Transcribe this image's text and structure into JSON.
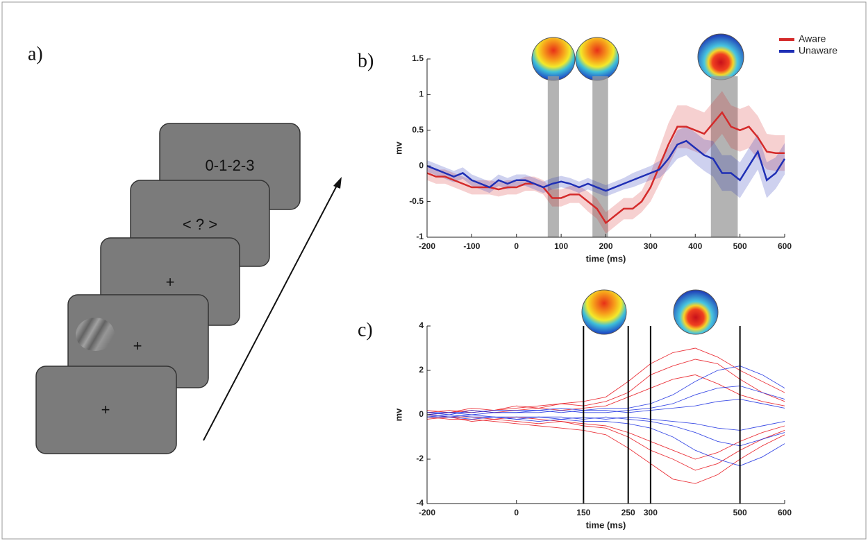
{
  "panels": [
    "a)",
    "b)",
    "c)"
  ],
  "diagram": {
    "screens": [
      "0-1-2-3",
      "< ? >",
      "+",
      "+",
      "+"
    ]
  },
  "chart_data": [
    {
      "type": "line",
      "xlabel": "time (ms)",
      "ylabel": "mv",
      "x": [
        -200,
        -180,
        -160,
        -140,
        -120,
        -100,
        -80,
        -60,
        -40,
        -20,
        0,
        20,
        40,
        60,
        80,
        100,
        120,
        140,
        160,
        180,
        200,
        220,
        240,
        260,
        280,
        300,
        320,
        340,
        360,
        380,
        400,
        420,
        440,
        460,
        480,
        500,
        520,
        540,
        560,
        580,
        600
      ],
      "xlim": [
        -200,
        600
      ],
      "xticks": [
        -200,
        -100,
        0,
        100,
        200,
        300,
        400,
        500,
        600
      ],
      "ylim": [
        -1,
        1.5
      ],
      "yticks": [
        -1,
        -0.5,
        0,
        0.5,
        1,
        1.5
      ],
      "shaded_regions": [
        [
          70,
          95
        ],
        [
          170,
          205
        ],
        [
          435,
          495
        ]
      ],
      "legend": "top-right",
      "series": [
        {
          "name": "Aware",
          "color": "#d42a2a",
          "values": [
            -0.1,
            -0.15,
            -0.15,
            -0.2,
            -0.25,
            -0.3,
            -0.3,
            -0.3,
            -0.33,
            -0.3,
            -0.3,
            -0.25,
            -0.25,
            -0.3,
            -0.45,
            -0.45,
            -0.4,
            -0.4,
            -0.5,
            -0.6,
            -0.8,
            -0.7,
            -0.6,
            -0.6,
            -0.5,
            -0.3,
            0.0,
            0.3,
            0.55,
            0.55,
            0.5,
            0.45,
            0.6,
            0.75,
            0.55,
            0.5,
            0.55,
            0.4,
            0.2,
            0.18,
            0.18
          ],
          "errors": [
            0.1,
            0.1,
            0.1,
            0.1,
            0.1,
            0.1,
            0.1,
            0.1,
            0.1,
            0.1,
            0.1,
            0.1,
            0.1,
            0.1,
            0.12,
            0.12,
            0.12,
            0.12,
            0.14,
            0.14,
            0.15,
            0.15,
            0.15,
            0.15,
            0.15,
            0.2,
            0.25,
            0.3,
            0.3,
            0.3,
            0.3,
            0.3,
            0.3,
            0.3,
            0.3,
            0.3,
            0.3,
            0.3,
            0.25,
            0.25,
            0.25
          ]
        },
        {
          "name": "Unaware",
          "color": "#1f2fb5",
          "values": [
            0.0,
            -0.05,
            -0.1,
            -0.15,
            -0.1,
            -0.2,
            -0.25,
            -0.3,
            -0.2,
            -0.25,
            -0.2,
            -0.2,
            -0.25,
            -0.3,
            -0.25,
            -0.22,
            -0.25,
            -0.3,
            -0.25,
            -0.3,
            -0.35,
            -0.3,
            -0.25,
            -0.2,
            -0.15,
            -0.1,
            -0.05,
            0.1,
            0.3,
            0.35,
            0.25,
            0.15,
            0.1,
            -0.1,
            -0.1,
            -0.2,
            0.0,
            0.2,
            -0.2,
            -0.1,
            0.1
          ],
          "errors": [
            0.08,
            0.08,
            0.08,
            0.08,
            0.08,
            0.08,
            0.08,
            0.08,
            0.08,
            0.08,
            0.08,
            0.08,
            0.08,
            0.08,
            0.08,
            0.08,
            0.08,
            0.08,
            0.08,
            0.08,
            0.08,
            0.08,
            0.08,
            0.1,
            0.1,
            0.1,
            0.12,
            0.15,
            0.2,
            0.2,
            0.22,
            0.22,
            0.25,
            0.25,
            0.25,
            0.25,
            0.25,
            0.25,
            0.25,
            0.22,
            0.22
          ]
        }
      ]
    },
    {
      "type": "line",
      "xlabel": "time (ms)",
      "ylabel": "mv",
      "x": [
        -200,
        -150,
        -100,
        -50,
        0,
        50,
        100,
        150,
        200,
        250,
        300,
        350,
        400,
        450,
        500,
        550,
        600
      ],
      "xlim": [
        -200,
        600
      ],
      "xticks": [
        -200,
        0,
        150,
        250,
        300,
        500,
        600
      ],
      "ylim": [
        -4,
        4
      ],
      "yticks": [
        -4,
        -2,
        0,
        2,
        4
      ],
      "vlines": [
        150,
        250,
        300,
        500
      ],
      "series": [
        {
          "color": "#e8131b",
          "values": [
            0.1,
            0.2,
            0.1,
            0.2,
            0.3,
            0.4,
            0.5,
            0.6,
            0.8,
            1.5,
            2.3,
            2.8,
            3.0,
            2.6,
            2.0,
            1.5,
            1.0
          ]
        },
        {
          "color": "#e8131b",
          "values": [
            -0.1,
            -0.2,
            -0.2,
            -0.3,
            -0.4,
            -0.5,
            -0.6,
            -0.7,
            -0.9,
            -1.5,
            -2.2,
            -2.9,
            -3.1,
            -2.7,
            -2.0,
            -1.4,
            -0.9
          ]
        },
        {
          "color": "#e8131b",
          "values": [
            0.0,
            0.1,
            0.2,
            0.1,
            0.2,
            0.3,
            0.2,
            0.3,
            0.4,
            0.8,
            1.2,
            1.6,
            1.8,
            1.4,
            0.9,
            0.6,
            0.4
          ]
        },
        {
          "color": "#e8131b",
          "values": [
            0.0,
            -0.1,
            -0.1,
            -0.2,
            -0.1,
            -0.2,
            -0.3,
            -0.4,
            -0.5,
            -0.8,
            -1.2,
            -1.6,
            -2.0,
            -1.7,
            -1.2,
            -0.8,
            -0.5
          ]
        },
        {
          "color": "#e8131b",
          "values": [
            0.2,
            0.1,
            0.3,
            0.2,
            0.4,
            0.3,
            0.5,
            0.4,
            0.6,
            1.0,
            1.8,
            2.2,
            2.5,
            2.3,
            1.6,
            1.0,
            0.6
          ]
        },
        {
          "color": "#e8131b",
          "values": [
            -0.2,
            -0.1,
            -0.3,
            -0.2,
            -0.3,
            -0.4,
            -0.3,
            -0.5,
            -0.6,
            -1.0,
            -1.6,
            -2.0,
            -2.5,
            -2.2,
            -1.6,
            -1.1,
            -0.7
          ]
        },
        {
          "color": "#1a2ee0",
          "values": [
            0.1,
            0.1,
            0.1,
            0.2,
            0.2,
            0.2,
            0.3,
            0.2,
            0.3,
            0.3,
            0.5,
            0.9,
            1.5,
            2.0,
            2.2,
            1.8,
            1.2
          ]
        },
        {
          "color": "#1a2ee0",
          "values": [
            -0.1,
            -0.1,
            -0.2,
            -0.1,
            -0.2,
            -0.3,
            -0.2,
            -0.3,
            -0.3,
            -0.4,
            -0.6,
            -1.0,
            -1.6,
            -2.0,
            -2.3,
            -1.9,
            -1.3
          ]
        },
        {
          "color": "#1a2ee0",
          "values": [
            0.0,
            0.1,
            0.0,
            0.1,
            0.1,
            0.1,
            0.2,
            0.1,
            0.1,
            0.2,
            0.3,
            0.5,
            0.9,
            1.2,
            1.3,
            1.0,
            0.7
          ]
        },
        {
          "color": "#1a2ee0",
          "values": [
            0.0,
            -0.1,
            0.0,
            -0.1,
            -0.1,
            -0.1,
            -0.1,
            -0.2,
            -0.1,
            -0.2,
            -0.3,
            -0.5,
            -0.8,
            -1.2,
            -1.4,
            -1.1,
            -0.8
          ]
        },
        {
          "color": "#1a2ee0",
          "values": [
            0.1,
            0.0,
            0.2,
            0.1,
            0.1,
            0.2,
            0.1,
            0.2,
            0.2,
            0.1,
            0.2,
            0.3,
            0.4,
            0.6,
            0.7,
            0.5,
            0.3
          ]
        },
        {
          "color": "#1a2ee0",
          "values": [
            -0.1,
            0.0,
            -0.1,
            -0.1,
            -0.2,
            -0.1,
            -0.2,
            -0.1,
            -0.2,
            -0.1,
            -0.2,
            -0.3,
            -0.4,
            -0.6,
            -0.7,
            -0.5,
            -0.3
          ]
        }
      ]
    }
  ]
}
